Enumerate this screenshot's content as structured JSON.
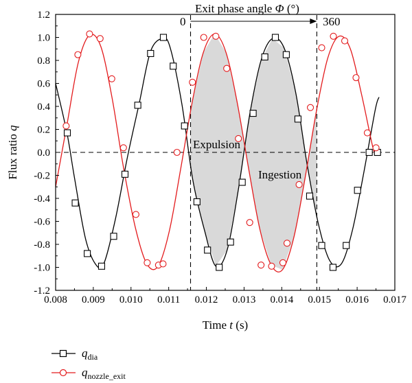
{
  "chart_data": {
    "type": "line",
    "xlabel": {
      "main": "Time ",
      "var": "t",
      "unit": " (s)"
    },
    "ylabel": {
      "main": "Flux ratio ",
      "var": "q"
    },
    "xlim": [
      0.008,
      0.017
    ],
    "ylim": [
      -1.2,
      1.2
    ],
    "x_ticks": [
      "0.008",
      "0.009",
      "0.010",
      "0.011",
      "0.012",
      "0.013",
      "0.014",
      "0.015",
      "0.016",
      "0.017"
    ],
    "y_ticks": [
      "1.2",
      "1.0",
      "0.8",
      "0.6",
      "0.4",
      "0.2",
      "0.0",
      "-0.2",
      "-0.4",
      "-0.6",
      "-0.8",
      "-1.0",
      "-1.2"
    ],
    "grid": false,
    "zero_line": 0.0,
    "phase_window": {
      "x_start": 0.01158,
      "x_end": 0.01493,
      "label": "Exit phase angle ",
      "symbol": "Φ",
      "unit": " (°)",
      "start_label": "0",
      "end_label": "360"
    },
    "annotations": [
      {
        "text": "Expulsion",
        "x": 0.0124,
        "y": 0.07
      },
      {
        "text": "Ingestion",
        "x": 0.0137,
        "y": -0.19
      }
    ],
    "series": [
      {
        "name": "q",
        "subscript": "dia",
        "color": "#000000",
        "marker": "square",
        "x": [
          0.008,
          0.0083,
          0.0085,
          0.0088,
          0.0091,
          0.0093,
          0.0096,
          0.0099,
          0.01022,
          0.01052,
          0.01084,
          0.01104,
          0.01135,
          0.01164,
          0.01196,
          0.01225,
          0.01255,
          0.01285,
          0.01315,
          0.01345,
          0.01375,
          0.01406,
          0.01437,
          0.01467,
          0.01497,
          0.01527,
          0.01558,
          0.01588,
          0.01618,
          0.01648,
          0.01658
        ],
        "y": [
          0.6,
          0.17,
          -0.22,
          -0.76,
          -0.99,
          -0.95,
          -0.56,
          -0.05,
          0.43,
          0.88,
          0.99,
          0.91,
          0.42,
          -0.24,
          -0.69,
          -0.99,
          -0.85,
          -0.32,
          0.33,
          0.8,
          0.99,
          0.91,
          0.52,
          -0.1,
          -0.62,
          -0.94,
          -0.97,
          -0.67,
          -0.17,
          0.37,
          0.48
        ],
        "markers_x": [
          0.00831,
          0.00852,
          0.00884,
          0.00922,
          0.00954,
          0.00984,
          0.01018,
          0.01052,
          0.01086,
          0.01112,
          0.01142,
          0.01175,
          0.01203,
          0.01234,
          0.01264,
          0.01295,
          0.01324,
          0.01355,
          0.01383,
          0.01412,
          0.01443,
          0.01474,
          0.01506,
          0.01536,
          0.01571,
          0.01601,
          0.01632,
          0.01654
        ],
        "markers_y": [
          0.17,
          -0.44,
          -0.88,
          -0.99,
          -0.73,
          -0.19,
          0.41,
          0.86,
          1.0,
          0.75,
          0.23,
          -0.43,
          -0.85,
          -1.0,
          -0.78,
          -0.26,
          0.34,
          0.83,
          1.0,
          0.85,
          0.29,
          -0.38,
          -0.81,
          -1.0,
          -0.81,
          -0.33,
          0.0,
          0.0
        ]
      },
      {
        "name": "q",
        "subscript": "nozzle_exit",
        "color": "#e31a1c",
        "marker": "circle",
        "x": [
          0.008,
          0.0083,
          0.0086,
          0.0089,
          0.0092,
          0.0095,
          0.0098,
          0.01012,
          0.01042,
          0.01072,
          0.01102,
          0.01132,
          0.01162,
          0.01192,
          0.01222,
          0.01252,
          0.01282,
          0.01312,
          0.01342,
          0.01372,
          0.01402,
          0.01432,
          0.01462,
          0.01492,
          0.01522,
          0.01552,
          0.01582,
          0.01612,
          0.01642,
          0.01652
        ],
        "y": [
          -0.3,
          0.24,
          0.78,
          1.02,
          0.92,
          0.47,
          -0.13,
          -0.66,
          -0.97,
          -0.99,
          -0.68,
          -0.14,
          0.43,
          0.87,
          1.03,
          0.87,
          0.43,
          -0.14,
          -0.67,
          -0.98,
          -1.02,
          -0.74,
          -0.22,
          0.36,
          0.82,
          1.01,
          0.9,
          0.5,
          0.04,
          -0.02
        ],
        "markers_x": [
          0.00828,
          0.00859,
          0.0089,
          0.00918,
          0.00949,
          0.0098,
          0.01013,
          0.01043,
          0.01073,
          0.01085,
          0.01122,
          0.01163,
          0.01193,
          0.01225,
          0.01254,
          0.01285,
          0.01315,
          0.01345,
          0.01373,
          0.01403,
          0.01414,
          0.01446,
          0.01476,
          0.01506,
          0.01537,
          0.01567,
          0.01597,
          0.01627,
          0.0165
        ],
        "markers_y": [
          0.23,
          0.85,
          1.03,
          0.99,
          0.64,
          0.04,
          -0.54,
          -0.96,
          -0.98,
          -0.97,
          0.0,
          0.61,
          1.0,
          1.01,
          0.73,
          0.12,
          -0.61,
          -0.98,
          -0.99,
          -0.96,
          -0.79,
          -0.28,
          0.39,
          0.91,
          1.01,
          0.97,
          0.65,
          0.17,
          0.04
        ]
      }
    ],
    "legend": {
      "placement": "bottom-left"
    }
  }
}
